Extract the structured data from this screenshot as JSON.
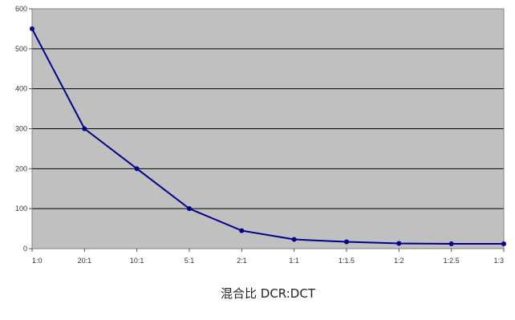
{
  "chart_data": {
    "type": "line",
    "title": "",
    "xlabel": "混合比 DCR:DCT",
    "ylabel": "",
    "categories": [
      "1:0",
      "20:1",
      "10:1",
      "5:1",
      "2:1",
      "1:1",
      "1:1.5",
      "1:2",
      "1:2.5",
      "1:3"
    ],
    "series": [
      {
        "values": [
          550,
          300,
          200,
          100,
          45,
          23,
          17,
          13,
          12,
          12
        ]
      }
    ],
    "ylim": [
      0,
      600
    ],
    "yticks": [
      0,
      100,
      200,
      300,
      400,
      500,
      600
    ],
    "grid": true,
    "legend": "none",
    "colors": {
      "plot_background": "#c0c0c0",
      "line": "#00008b",
      "gridline": "#000000"
    }
  }
}
